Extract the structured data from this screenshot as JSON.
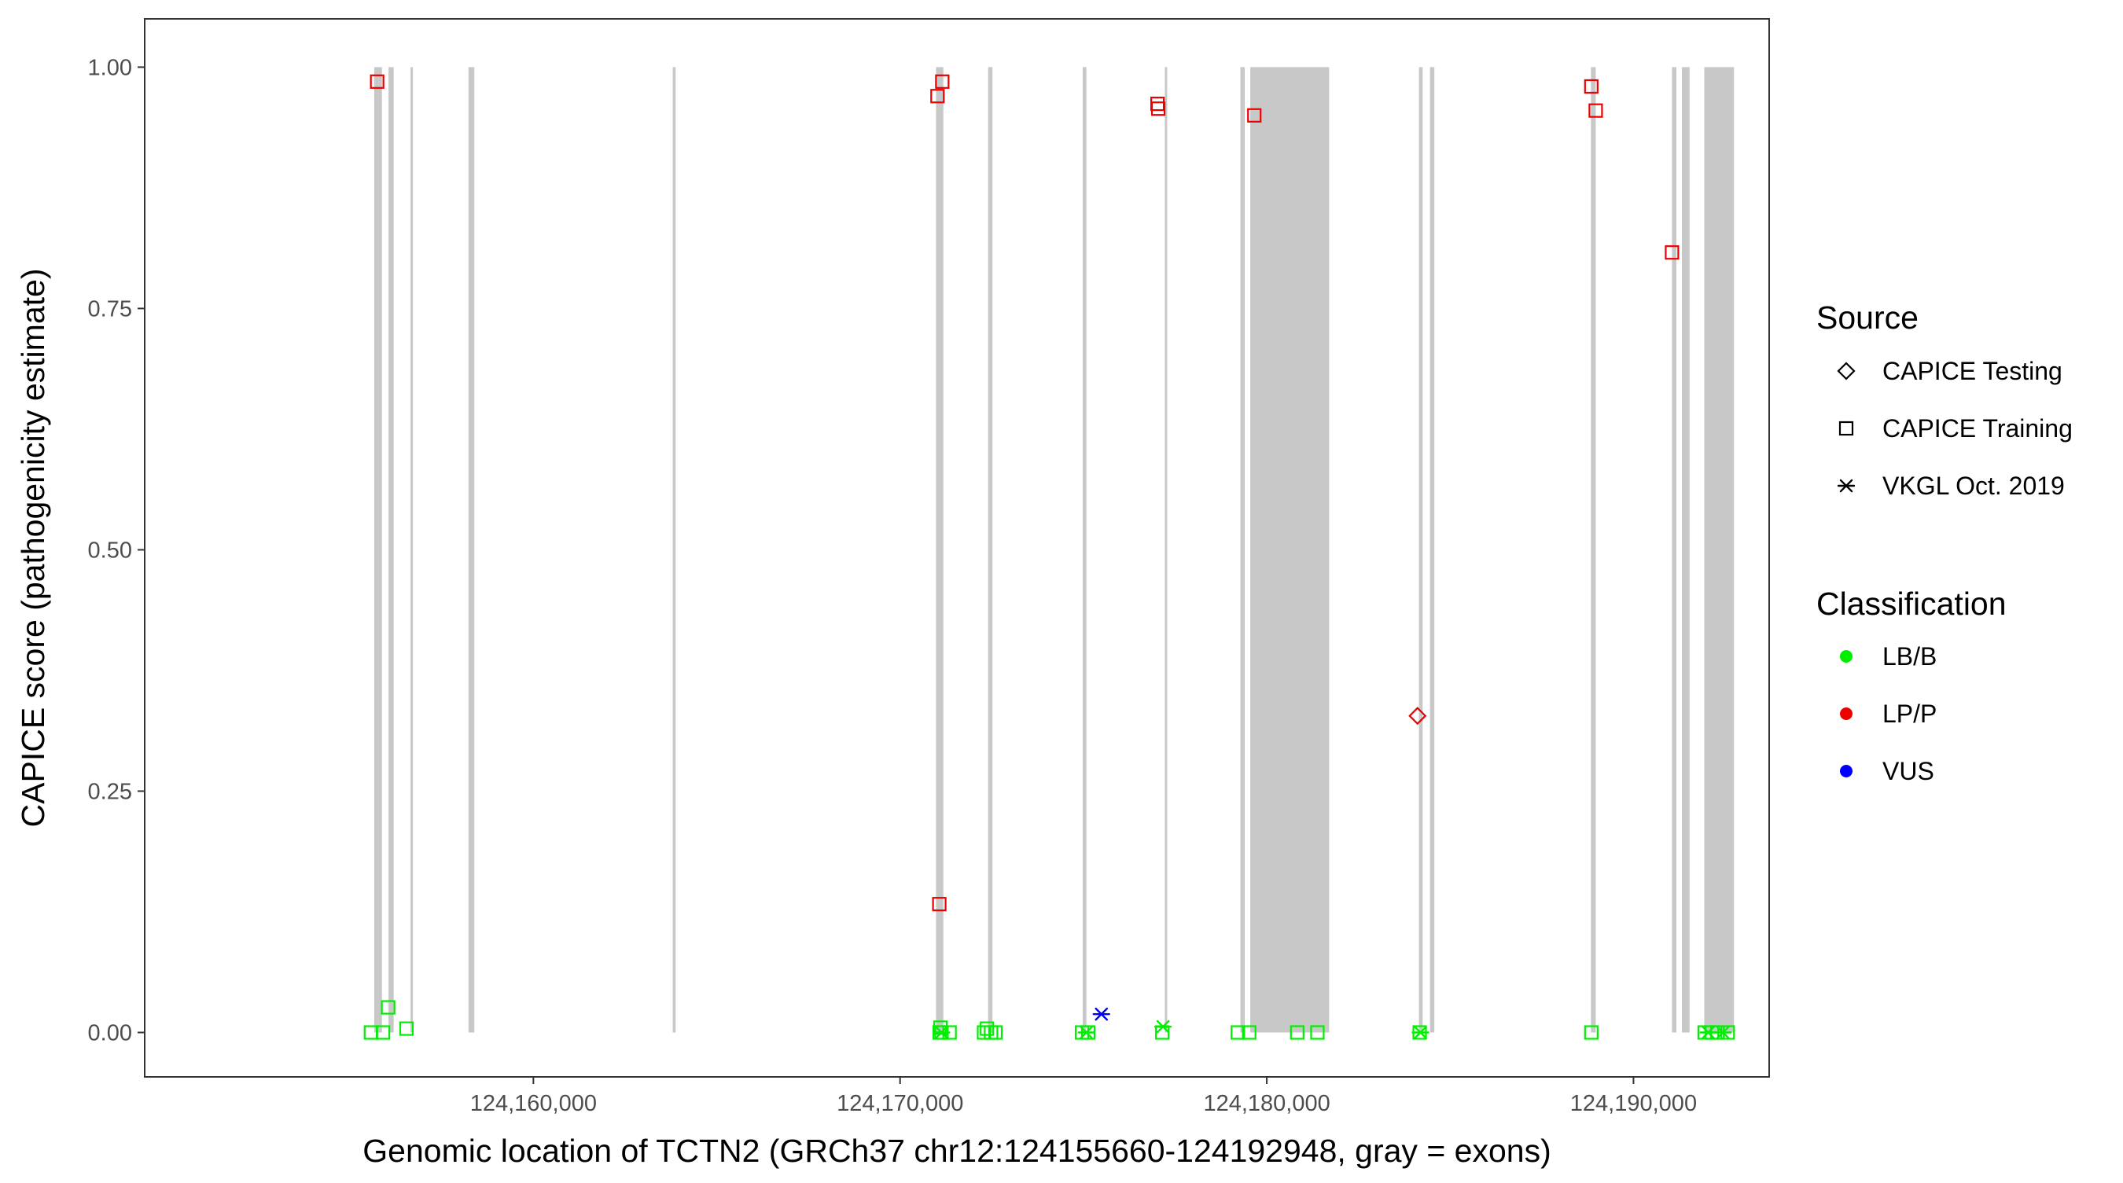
{
  "chart_data": {
    "type": "scatter",
    "title": "",
    "xlabel": "Genomic location of TCTN2 (GRCh37 chr12:124155660-124192948, gray = exons)",
    "ylabel": "CAPICE score (pathogenicity estimate)",
    "xlim": [
      124149400,
      124193700
    ],
    "ylim": [
      -0.046,
      1.05
    ],
    "x_ticks": [
      124160000,
      124170000,
      124180000,
      124190000
    ],
    "x_tick_labels": [
      "124,160,000",
      "124,170,000",
      "124,180,000",
      "124,190,000"
    ],
    "y_ticks": [
      0,
      0.25,
      0.5,
      0.75,
      1
    ],
    "y_tick_labels": [
      "0.00",
      "0.25",
      "0.50",
      "0.75",
      "1.00"
    ],
    "grid": false,
    "exon_color": "#c8c8c8",
    "exons": [
      [
        124155660,
        124155870
      ],
      [
        124156050,
        124156190
      ],
      [
        124156650,
        124156700
      ],
      [
        124158230,
        124158390
      ],
      [
        124163800,
        124163880
      ],
      [
        124170980,
        124171180
      ],
      [
        124172400,
        124172520
      ],
      [
        124174980,
        124175080
      ],
      [
        124177220,
        124177260
      ],
      [
        124179280,
        124179400
      ],
      [
        124179550,
        124181700
      ],
      [
        124184150,
        124184250
      ],
      [
        124184450,
        124184570
      ],
      [
        124188840,
        124188970
      ],
      [
        124191050,
        124191170
      ],
      [
        124191320,
        124191530
      ],
      [
        124191930,
        124192740
      ]
    ],
    "legend": {
      "position": "right",
      "source_title": "Source",
      "classification_title": "Classification",
      "sources": [
        {
          "name": "CAPICE Testing",
          "shape": "diamond"
        },
        {
          "name": "CAPICE Training",
          "shape": "square"
        },
        {
          "name": "VKGL Oct. 2019",
          "shape": "asterisk"
        }
      ],
      "classes": [
        {
          "name": "LB/B",
          "color": "#00ee00"
        },
        {
          "name": "LP/P",
          "color": "#ee0000"
        },
        {
          "name": "VUS",
          "color": "#0000ff"
        }
      ]
    },
    "series": [
      {
        "name": "CAPICE Training",
        "shape": "square",
        "classification": "LP/P",
        "points": [
          [
            124155740,
            0.985
          ],
          [
            124171020,
            0.97
          ],
          [
            124171150,
            0.985
          ],
          [
            124171070,
            0.133
          ],
          [
            124177020,
            0.962
          ],
          [
            124177040,
            0.957
          ],
          [
            124179660,
            0.95
          ],
          [
            124188850,
            0.98
          ],
          [
            124188970,
            0.955
          ],
          [
            124191050,
            0.808
          ]
        ]
      },
      {
        "name": "CAPICE Testing",
        "shape": "diamond",
        "classification": "LP/P",
        "points": [
          [
            124184110,
            0.328
          ]
        ]
      },
      {
        "name": "CAPICE Training",
        "shape": "square",
        "classification": "LB/B",
        "points": [
          [
            124155570,
            0.0
          ],
          [
            124155900,
            0.0
          ],
          [
            124156040,
            0.026
          ],
          [
            124156540,
            0.004
          ],
          [
            124171080,
            0.0
          ],
          [
            124171130,
            0.0
          ],
          [
            124171100,
            0.005
          ],
          [
            124171350,
            0.0
          ],
          [
            124172290,
            0.0
          ],
          [
            124172370,
            0.004
          ],
          [
            124172480,
            0.0
          ],
          [
            124172600,
            0.0
          ],
          [
            124174960,
            0.0
          ],
          [
            124175130,
            0.0
          ],
          [
            124177150,
            0.0
          ],
          [
            124179210,
            0.0
          ],
          [
            124179520,
            0.0
          ],
          [
            124180830,
            0.0
          ],
          [
            124181380,
            0.0
          ],
          [
            124184170,
            0.0
          ],
          [
            124188850,
            0.0
          ],
          [
            124191940,
            0.0
          ],
          [
            124192140,
            0.0
          ],
          [
            124192290,
            0.0
          ],
          [
            124192570,
            0.0
          ]
        ]
      },
      {
        "name": "VKGL Oct. 2019",
        "shape": "asterisk",
        "classification": "LB/B",
        "points": [
          [
            124171130,
            0.0
          ],
          [
            124175080,
            0.0
          ],
          [
            124177170,
            0.006
          ],
          [
            124184190,
            0.0
          ],
          [
            124192040,
            0.0
          ],
          [
            124192440,
            0.0
          ]
        ]
      },
      {
        "name": "VKGL Oct. 2019",
        "shape": "asterisk",
        "classification": "VUS",
        "points": [
          [
            124175490,
            0.019
          ]
        ]
      }
    ]
  }
}
